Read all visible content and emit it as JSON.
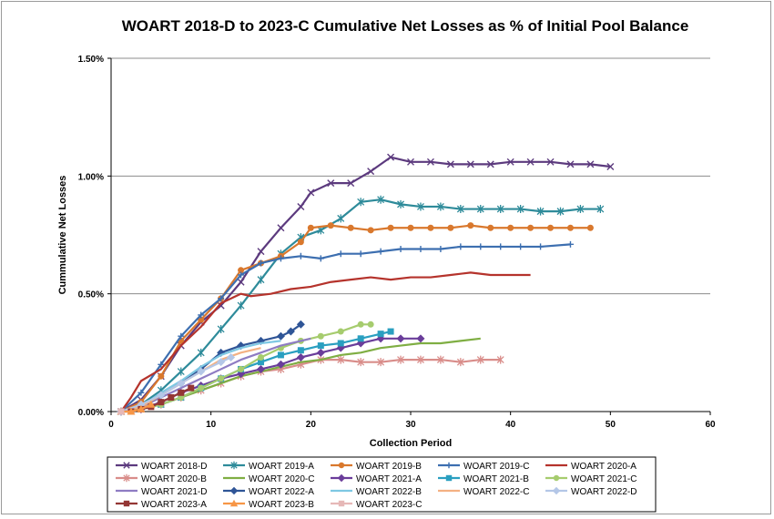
{
  "chart_data": {
    "type": "line",
    "title": "WOART 2018-D to 2023-C  Cumulative Net Losses as % of Initial Pool Balance",
    "xlabel": "Collection Period",
    "ylabel": "Cummulative Net Losses",
    "xlim": [
      0,
      60
    ],
    "ylim": [
      0,
      0.015
    ],
    "x_ticks": [
      "0",
      "10",
      "20",
      "30",
      "40",
      "50",
      "60"
    ],
    "y_ticks": [
      "0.00%",
      "0.50%",
      "1.00%",
      "1.50%"
    ],
    "grid": "horizontal",
    "legend_position": "bottom",
    "series": [
      {
        "name": "WOART 2018-D",
        "color": "#5c3a7e",
        "marker": "x",
        "points": [
          [
            1,
            0
          ],
          [
            3,
            0.0005
          ],
          [
            5,
            0.0015
          ],
          [
            7,
            0.0028
          ],
          [
            9,
            0.0038
          ],
          [
            11,
            0.0045
          ],
          [
            13,
            0.0055
          ],
          [
            15,
            0.0068
          ],
          [
            17,
            0.0078
          ],
          [
            19,
            0.0087
          ],
          [
            20,
            0.0093
          ],
          [
            22,
            0.0097
          ],
          [
            24,
            0.0097
          ],
          [
            26,
            0.0102
          ],
          [
            28,
            0.0108
          ],
          [
            30,
            0.0106
          ],
          [
            32,
            0.0106
          ],
          [
            34,
            0.0105
          ],
          [
            36,
            0.0105
          ],
          [
            38,
            0.0105
          ],
          [
            40,
            0.0106
          ],
          [
            42,
            0.0106
          ],
          [
            44,
            0.0106
          ],
          [
            46,
            0.0105
          ],
          [
            48,
            0.0105
          ],
          [
            50,
            0.0104
          ]
        ]
      },
      {
        "name": "WOART 2019-A",
        "color": "#2e8b9a",
        "marker": "star",
        "points": [
          [
            1,
            0
          ],
          [
            3,
            0.0003
          ],
          [
            5,
            0.0009
          ],
          [
            7,
            0.0017
          ],
          [
            9,
            0.0025
          ],
          [
            11,
            0.0035
          ],
          [
            13,
            0.0045
          ],
          [
            15,
            0.0056
          ],
          [
            17,
            0.0067
          ],
          [
            19,
            0.0074
          ],
          [
            21,
            0.0077
          ],
          [
            23,
            0.0082
          ],
          [
            25,
            0.0089
          ],
          [
            27,
            0.009
          ],
          [
            29,
            0.0088
          ],
          [
            31,
            0.0087
          ],
          [
            33,
            0.0087
          ],
          [
            35,
            0.0086
          ],
          [
            37,
            0.0086
          ],
          [
            39,
            0.0086
          ],
          [
            41,
            0.0086
          ],
          [
            43,
            0.0085
          ],
          [
            45,
            0.0085
          ],
          [
            47,
            0.0086
          ],
          [
            49,
            0.0086
          ]
        ]
      },
      {
        "name": "WOART 2019-B",
        "color": "#d9782d",
        "marker": "circle",
        "points": [
          [
            1,
            0
          ],
          [
            3,
            0.0004
          ],
          [
            5,
            0.0015
          ],
          [
            7,
            0.003
          ],
          [
            9,
            0.0039
          ],
          [
            11,
            0.0048
          ],
          [
            13,
            0.006
          ],
          [
            15,
            0.0063
          ],
          [
            17,
            0.0066
          ],
          [
            19,
            0.0072
          ],
          [
            20,
            0.0078
          ],
          [
            22,
            0.0079
          ],
          [
            24,
            0.0078
          ],
          [
            26,
            0.0077
          ],
          [
            28,
            0.0078
          ],
          [
            30,
            0.0078
          ],
          [
            32,
            0.0078
          ],
          [
            34,
            0.0078
          ],
          [
            36,
            0.0079
          ],
          [
            38,
            0.0078
          ],
          [
            40,
            0.0078
          ],
          [
            42,
            0.0078
          ],
          [
            44,
            0.0078
          ],
          [
            46,
            0.0078
          ],
          [
            48,
            0.0078
          ]
        ]
      },
      {
        "name": "WOART 2019-C",
        "color": "#3d6fb0",
        "marker": "plus",
        "points": [
          [
            1,
            0
          ],
          [
            3,
            0.0008
          ],
          [
            5,
            0.002
          ],
          [
            7,
            0.0032
          ],
          [
            9,
            0.0041
          ],
          [
            11,
            0.0048
          ],
          [
            13,
            0.0058
          ],
          [
            15,
            0.0063
          ],
          [
            17,
            0.0065
          ],
          [
            19,
            0.0066
          ],
          [
            21,
            0.0065
          ],
          [
            23,
            0.0067
          ],
          [
            25,
            0.0067
          ],
          [
            27,
            0.0068
          ],
          [
            29,
            0.0069
          ],
          [
            31,
            0.0069
          ],
          [
            33,
            0.0069
          ],
          [
            35,
            0.007
          ],
          [
            37,
            0.007
          ],
          [
            39,
            0.007
          ],
          [
            41,
            0.007
          ],
          [
            43,
            0.007
          ],
          [
            46,
            0.0071
          ]
        ]
      },
      {
        "name": "WOART 2020-A",
        "color": "#b5332c",
        "marker": "none",
        "points": [
          [
            1,
            0
          ],
          [
            2,
            0.0006
          ],
          [
            3,
            0.0013
          ],
          [
            5,
            0.0018
          ],
          [
            7,
            0.0028
          ],
          [
            9,
            0.0036
          ],
          [
            11,
            0.0046
          ],
          [
            13,
            0.005
          ],
          [
            14,
            0.0049
          ],
          [
            16,
            0.005
          ],
          [
            18,
            0.0052
          ],
          [
            20,
            0.0053
          ],
          [
            22,
            0.0055
          ],
          [
            24,
            0.0056
          ],
          [
            26,
            0.0057
          ],
          [
            28,
            0.0056
          ],
          [
            30,
            0.0057
          ],
          [
            32,
            0.0057
          ],
          [
            34,
            0.0058
          ],
          [
            36,
            0.0059
          ],
          [
            38,
            0.0058
          ],
          [
            40,
            0.0058
          ],
          [
            42,
            0.0058
          ]
        ]
      },
      {
        "name": "WOART 2020-B",
        "color": "#d98d8a",
        "marker": "star",
        "points": [
          [
            1,
            0
          ],
          [
            3,
            0.0001
          ],
          [
            5,
            0.0003
          ],
          [
            7,
            0.0006
          ],
          [
            9,
            0.0009
          ],
          [
            11,
            0.0012
          ],
          [
            13,
            0.0015
          ],
          [
            15,
            0.0017
          ],
          [
            17,
            0.0018
          ],
          [
            19,
            0.002
          ],
          [
            21,
            0.0022
          ],
          [
            23,
            0.0022
          ],
          [
            25,
            0.0021
          ],
          [
            27,
            0.0021
          ],
          [
            29,
            0.0022
          ],
          [
            31,
            0.0022
          ],
          [
            33,
            0.0022
          ],
          [
            35,
            0.0021
          ],
          [
            37,
            0.0022
          ],
          [
            39,
            0.0022
          ]
        ]
      },
      {
        "name": "WOART 2020-C",
        "color": "#7fae43",
        "marker": "none",
        "points": [
          [
            1,
            0
          ],
          [
            3,
            0.0001
          ],
          [
            5,
            0.0003
          ],
          [
            7,
            0.0006
          ],
          [
            9,
            0.0009
          ],
          [
            11,
            0.0012
          ],
          [
            13,
            0.0015
          ],
          [
            15,
            0.0017
          ],
          [
            17,
            0.0019
          ],
          [
            19,
            0.0021
          ],
          [
            21,
            0.0022
          ],
          [
            23,
            0.0024
          ],
          [
            25,
            0.0025
          ],
          [
            27,
            0.0027
          ],
          [
            29,
            0.0028
          ],
          [
            31,
            0.0029
          ],
          [
            33,
            0.0029
          ],
          [
            35,
            0.003
          ],
          [
            37,
            0.0031
          ]
        ]
      },
      {
        "name": "WOART 2021-A",
        "color": "#6a3d9a",
        "marker": "diamond",
        "points": [
          [
            1,
            0
          ],
          [
            3,
            0.0001
          ],
          [
            5,
            0.0004
          ],
          [
            7,
            0.0008
          ],
          [
            9,
            0.0011
          ],
          [
            11,
            0.0014
          ],
          [
            13,
            0.0016
          ],
          [
            15,
            0.0018
          ],
          [
            17,
            0.002
          ],
          [
            19,
            0.0023
          ],
          [
            21,
            0.0025
          ],
          [
            23,
            0.0027
          ],
          [
            25,
            0.0029
          ],
          [
            27,
            0.0031
          ],
          [
            29,
            0.0031
          ],
          [
            31,
            0.0031
          ]
        ]
      },
      {
        "name": "WOART 2021-B",
        "color": "#2a9fc0",
        "marker": "square",
        "points": [
          [
            1,
            0
          ],
          [
            3,
            0.0001
          ],
          [
            5,
            0.0003
          ],
          [
            7,
            0.0006
          ],
          [
            9,
            0.001
          ],
          [
            11,
            0.0014
          ],
          [
            13,
            0.0018
          ],
          [
            15,
            0.0021
          ],
          [
            17,
            0.0024
          ],
          [
            19,
            0.0026
          ],
          [
            21,
            0.0028
          ],
          [
            23,
            0.0029
          ],
          [
            25,
            0.0031
          ],
          [
            27,
            0.0033
          ],
          [
            28,
            0.0034
          ]
        ]
      },
      {
        "name": "WOART 2021-C",
        "color": "#a6cc6e",
        "marker": "circle",
        "points": [
          [
            1,
            0
          ],
          [
            3,
            0.0001
          ],
          [
            5,
            0.0003
          ],
          [
            7,
            0.0006
          ],
          [
            9,
            0.001
          ],
          [
            11,
            0.0014
          ],
          [
            13,
            0.0018
          ],
          [
            15,
            0.0023
          ],
          [
            17,
            0.0027
          ],
          [
            19,
            0.003
          ],
          [
            21,
            0.0032
          ],
          [
            23,
            0.0034
          ],
          [
            25,
            0.0037
          ],
          [
            26,
            0.0037
          ]
        ]
      },
      {
        "name": "WOART 2021-D",
        "color": "#8e7cc3",
        "marker": "none",
        "points": [
          [
            1,
            0
          ],
          [
            3,
            0.0002
          ],
          [
            5,
            0.0006
          ],
          [
            7,
            0.001
          ],
          [
            9,
            0.0014
          ],
          [
            11,
            0.0018
          ],
          [
            13,
            0.0022
          ],
          [
            15,
            0.0025
          ],
          [
            17,
            0.0028
          ],
          [
            19,
            0.003
          ],
          [
            20,
            0.0031
          ]
        ]
      },
      {
        "name": "WOART 2022-A",
        "color": "#2f5597",
        "marker": "diamond",
        "points": [
          [
            1,
            0
          ],
          [
            3,
            0.0002
          ],
          [
            5,
            0.0007
          ],
          [
            7,
            0.0012
          ],
          [
            9,
            0.0018
          ],
          [
            11,
            0.0025
          ],
          [
            13,
            0.0028
          ],
          [
            15,
            0.003
          ],
          [
            17,
            0.0032
          ],
          [
            18,
            0.0034
          ],
          [
            19,
            0.0037
          ]
        ]
      },
      {
        "name": "WOART 2022-B",
        "color": "#7ec8e3",
        "marker": "none",
        "points": [
          [
            1,
            0
          ],
          [
            3,
            0.0002
          ],
          [
            5,
            0.0008
          ],
          [
            7,
            0.0013
          ],
          [
            9,
            0.0019
          ],
          [
            11,
            0.0024
          ],
          [
            13,
            0.0027
          ],
          [
            15,
            0.0029
          ],
          [
            17,
            0.003
          ]
        ]
      },
      {
        "name": "WOART 2022-C",
        "color": "#f4b183",
        "marker": "none",
        "points": [
          [
            1,
            0
          ],
          [
            3,
            0.0002
          ],
          [
            5,
            0.0007
          ],
          [
            7,
            0.0012
          ],
          [
            9,
            0.0017
          ],
          [
            11,
            0.0022
          ],
          [
            13,
            0.0025
          ],
          [
            15,
            0.0027
          ]
        ]
      },
      {
        "name": "WOART 2022-D",
        "color": "#b4c7e7",
        "marker": "diamond",
        "points": [
          [
            1,
            0
          ],
          [
            3,
            0.0003
          ],
          [
            5,
            0.0007
          ],
          [
            7,
            0.0012
          ],
          [
            9,
            0.0017
          ],
          [
            11,
            0.0021
          ],
          [
            12,
            0.0023
          ]
        ]
      },
      {
        "name": "WOART 2023-A",
        "color": "#943634",
        "marker": "square",
        "points": [
          [
            1,
            0
          ],
          [
            2,
            0
          ],
          [
            3,
            0.0001
          ],
          [
            4,
            0.0002
          ],
          [
            5,
            0.0004
          ],
          [
            6,
            0.0006
          ],
          [
            7,
            0.0008
          ],
          [
            8,
            0.001
          ]
        ]
      },
      {
        "name": "WOART 2023-B",
        "color": "#f79646",
        "marker": "triangle",
        "points": [
          [
            1,
            0
          ],
          [
            2,
            0
          ],
          [
            3,
            0.0001
          ],
          [
            4,
            0.0003
          ]
        ]
      },
      {
        "name": "WOART 2023-C",
        "color": "#e6b8b7",
        "marker": "square",
        "points": [
          [
            1,
            0
          ]
        ]
      }
    ]
  }
}
